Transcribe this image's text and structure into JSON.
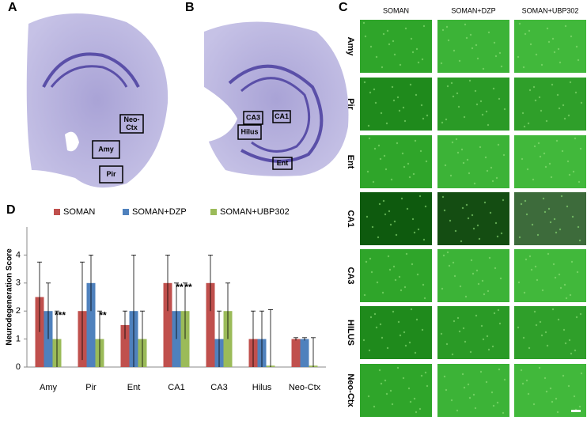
{
  "panel_labels": [
    "A",
    "B",
    "C",
    "D"
  ],
  "panel_a": {
    "regions": [
      [
        "Neo-",
        "Ctx"
      ],
      [
        "Amy"
      ],
      [
        "Pir"
      ]
    ]
  },
  "panel_b": {
    "regions": [
      [
        "CA3"
      ],
      [
        "CA1"
      ],
      [
        "Hilus"
      ],
      [
        "Ent"
      ]
    ]
  },
  "panel_c": {
    "columns": [
      "SOMAN",
      "SOMAN+DZP",
      "SOMAN+UBP302"
    ],
    "rows": [
      "Amy",
      "Pir",
      "Ent",
      "CA1",
      "CA3",
      "HILUS",
      "Neo-Ctx"
    ]
  },
  "chart_data": {
    "type": "bar",
    "ylabel": "Neurodegeneration Score",
    "categories": [
      "Amy",
      "Pir",
      "Ent",
      "CA1",
      "CA3",
      "Hilus",
      "Neo-Ctx"
    ],
    "ylim": [
      0,
      5
    ],
    "yticks": [
      0,
      1,
      2,
      3,
      4
    ],
    "series": [
      {
        "name": "SOMAN",
        "color": "#c0504d",
        "values": [
          2.5,
          2,
          1.5,
          3,
          3,
          1,
          1
        ],
        "errors": [
          1.25,
          1.75,
          0.5,
          1,
          1,
          1,
          0.05
        ],
        "value_annotations": [
          null,
          null,
          null,
          null,
          null,
          null,
          null
        ]
      },
      {
        "name": "SOMAN+DZP",
        "color": "#4f81bd",
        "values": [
          2,
          3,
          2,
          2,
          1,
          1,
          1
        ],
        "errors": [
          1,
          1,
          2,
          1,
          1,
          1,
          0.05
        ],
        "value_annotations": [
          null,
          null,
          null,
          "**",
          null,
          null,
          null
        ]
      },
      {
        "name": "SOMAN+UBP302",
        "color": "#9bbb59",
        "values": [
          1,
          1,
          1,
          2,
          2,
          0.05,
          0.05
        ],
        "errors": [
          1,
          1,
          1,
          1,
          1,
          2,
          1
        ],
        "value_annotations": [
          "***",
          "**",
          null,
          "**",
          null,
          null,
          null
        ]
      }
    ]
  }
}
